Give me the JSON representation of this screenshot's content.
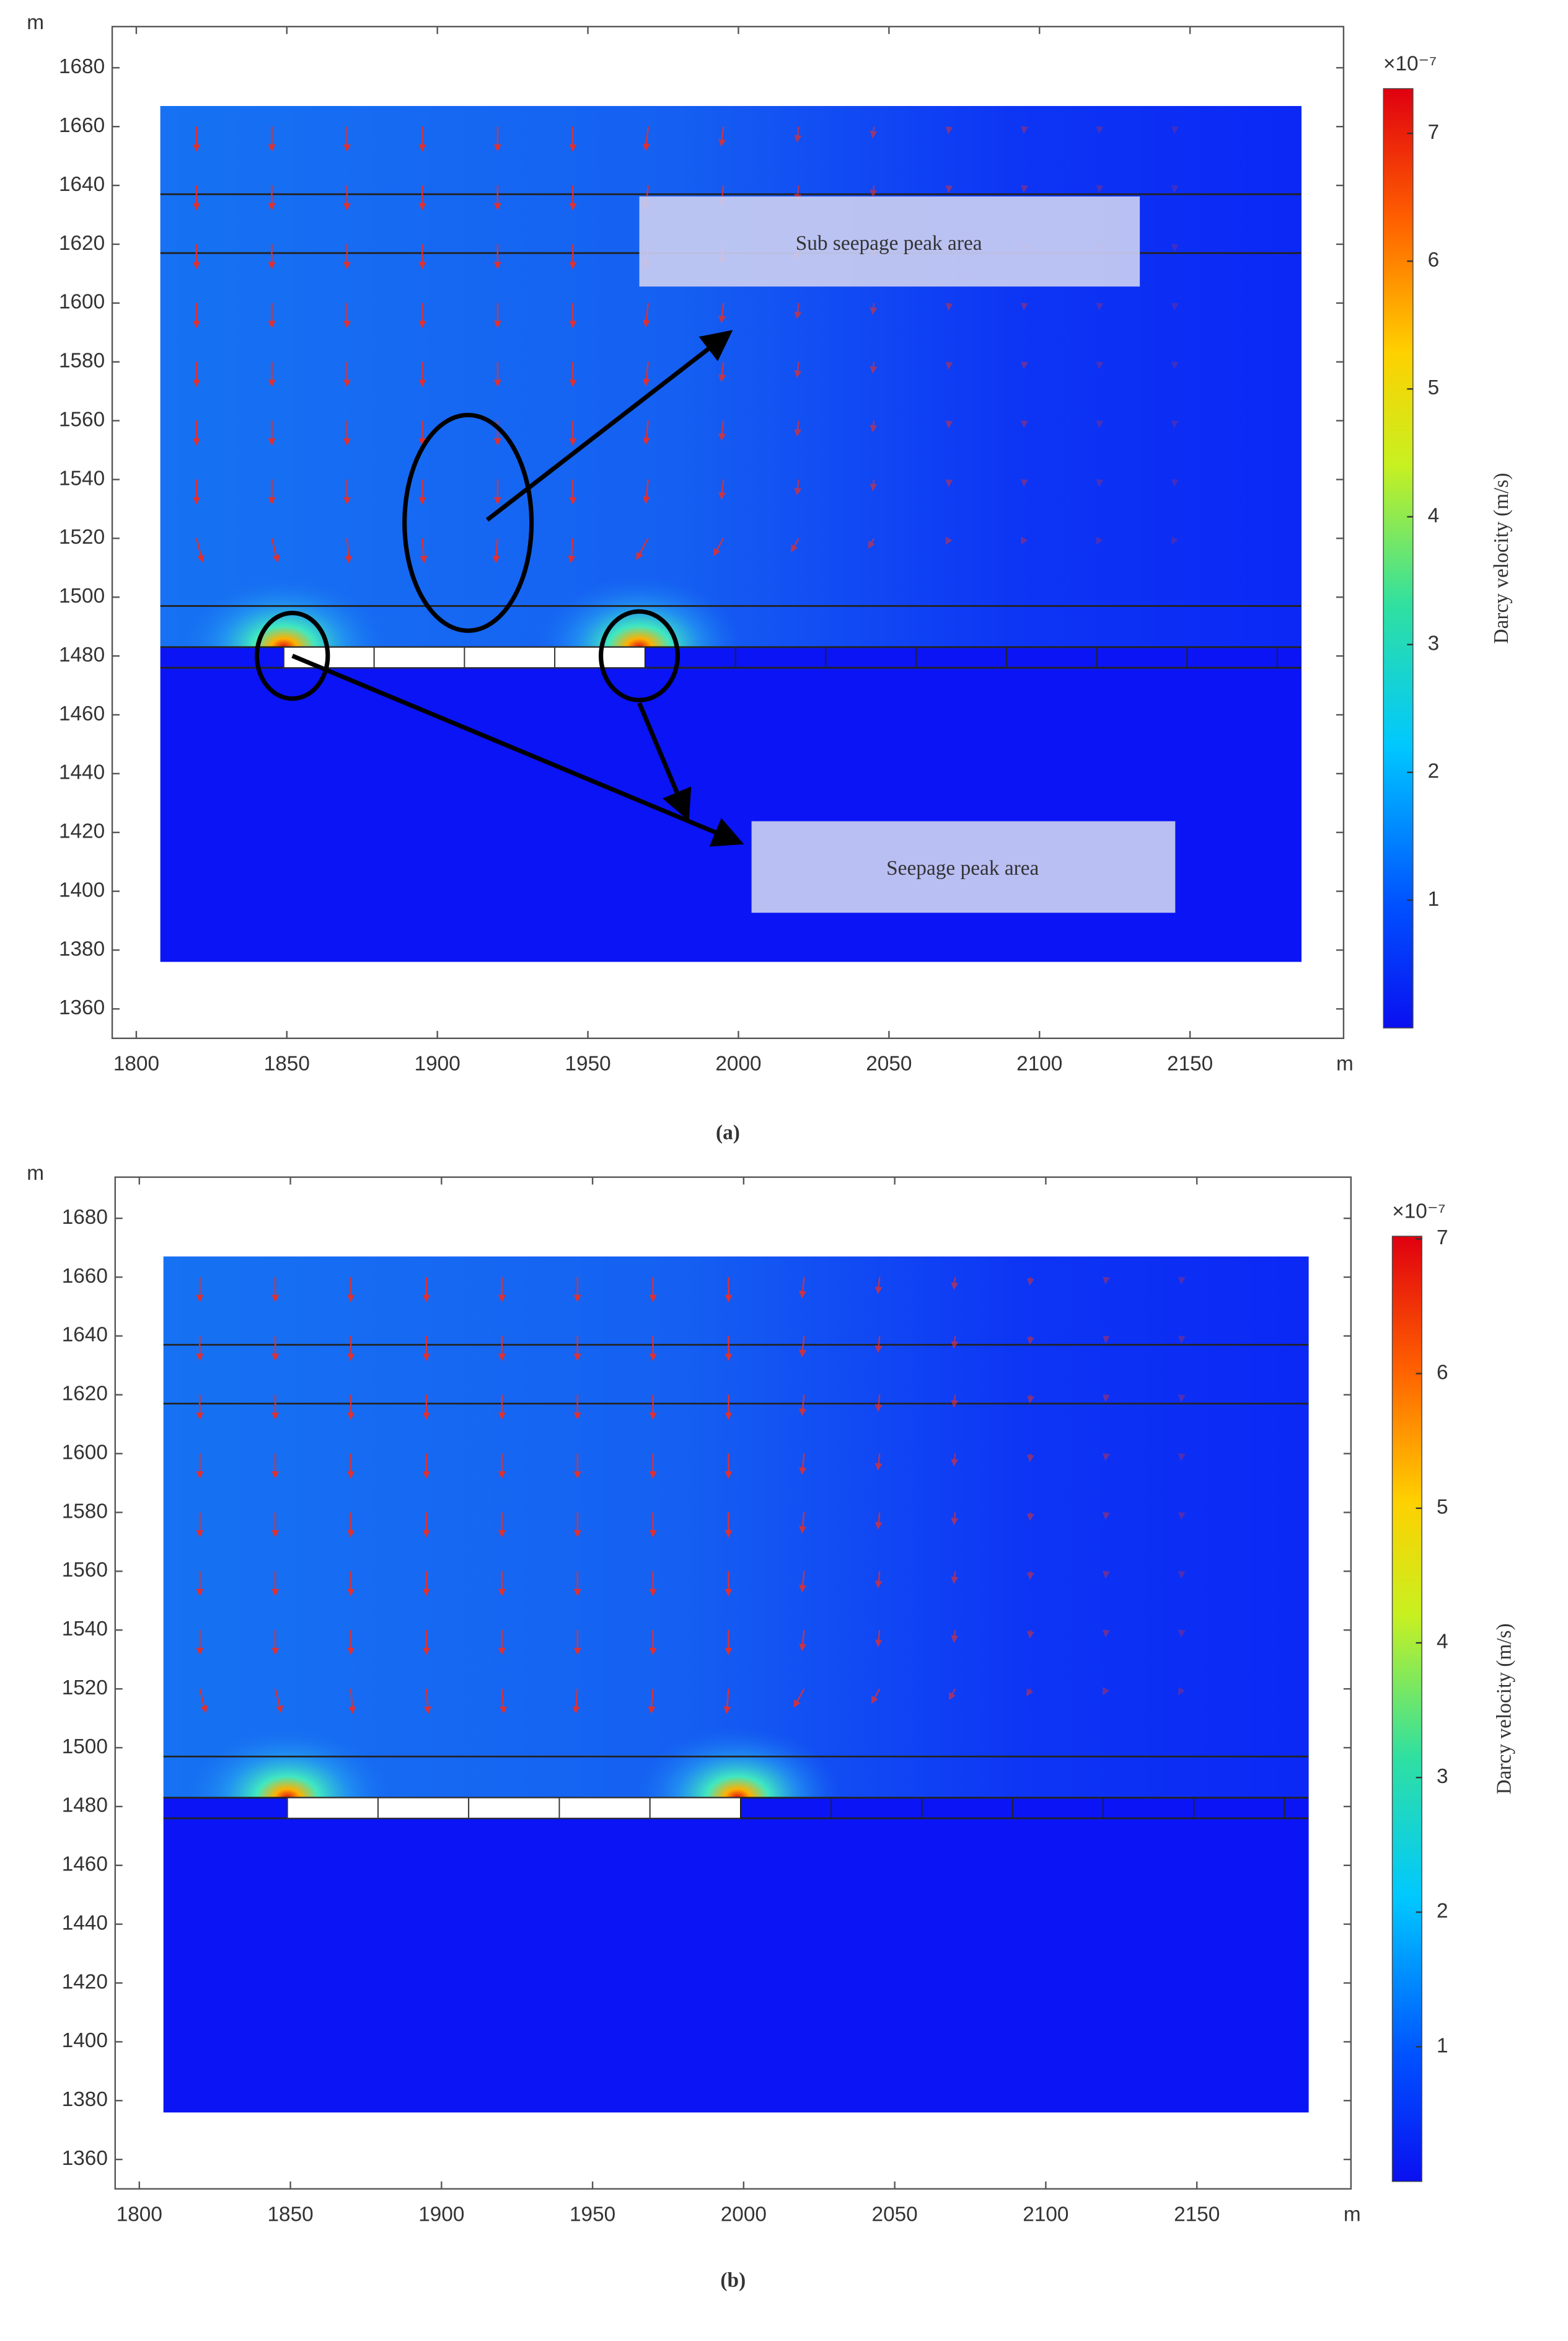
{
  "chart_data": [
    {
      "type": "vector-field",
      "caption": "(a)",
      "x_label": "m",
      "y_label": "m",
      "xlim": [
        1792,
        2201
      ],
      "ylim": [
        1350,
        1694
      ],
      "xticks": [
        1800,
        1850,
        1900,
        1950,
        2000,
        2050,
        2100,
        2150
      ],
      "yticks": [
        1360,
        1380,
        1400,
        1420,
        1440,
        1460,
        1480,
        1500,
        1520,
        1540,
        1560,
        1580,
        1600,
        1620,
        1640,
        1660,
        1680
      ],
      "colorbar": {
        "label": "Darcy velocity (m/s)",
        "multiplier": "×10⁻⁷",
        "clim": [
          0,
          7.35
        ],
        "ticks": [
          1,
          2,
          3,
          4,
          5,
          6,
          7
        ]
      },
      "annotations": [
        "Sub seepage peak area",
        "Seepage peak area"
      ]
    },
    {
      "type": "vector-field",
      "caption": "(b)",
      "x_label": "m",
      "y_label": "m",
      "xlim": [
        1792,
        2201
      ],
      "ylim": [
        1350,
        1694
      ],
      "xticks": [
        1800,
        1850,
        1900,
        1950,
        2000,
        2050,
        2100,
        2150
      ],
      "yticks": [
        1360,
        1380,
        1400,
        1420,
        1440,
        1460,
        1480,
        1500,
        1520,
        1540,
        1560,
        1580,
        1600,
        1620,
        1640,
        1660,
        1680
      ],
      "colorbar": {
        "label": "Darcy velocity (m/s)",
        "multiplier": "×10⁻⁷",
        "clim": [
          0,
          7.02
        ],
        "ticks": [
          1,
          2,
          3,
          4,
          5,
          6,
          7
        ]
      }
    }
  ]
}
